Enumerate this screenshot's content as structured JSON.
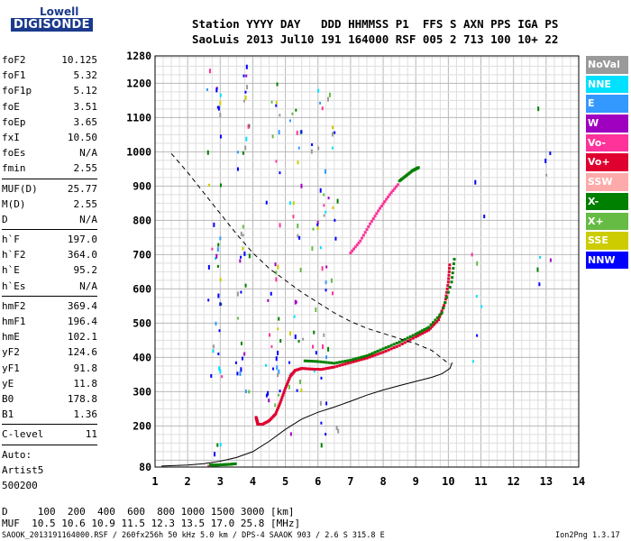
{
  "logo": {
    "line1": "Lowell",
    "line2": "DIGISONDE"
  },
  "header": {
    "row1": "Station YYYY DAY   DDD HHMMSS P1  FFS S AXN PPS IGA PS",
    "row2": "SaoLuis 2013 Jul10 191 164000 RSF 005 2 713 100 10+ 22"
  },
  "parameters": [
    [
      {
        "name": "foF2",
        "value": "10.125"
      },
      {
        "name": "foF1",
        "value": "5.32"
      },
      {
        "name": "foF1p",
        "value": "5.12"
      },
      {
        "name": "foE",
        "value": "3.51"
      },
      {
        "name": "foEp",
        "value": "3.65"
      },
      {
        "name": "fxI",
        "value": "10.50"
      },
      {
        "name": "foEs",
        "value": "N/A"
      },
      {
        "name": "fmin",
        "value": "2.55"
      }
    ],
    [
      {
        "name": "MUF(D)",
        "value": "25.77"
      },
      {
        "name": "M(D)",
        "value": "2.55"
      },
      {
        "name": "D",
        "value": "N/A"
      }
    ],
    [
      {
        "name": "h`F",
        "value": "197.0"
      },
      {
        "name": "h`F2",
        "value": "364.0"
      },
      {
        "name": "h`E",
        "value": "95.2"
      },
      {
        "name": "h`Es",
        "value": "N/A"
      }
    ],
    [
      {
        "name": "hmF2",
        "value": "369.4"
      },
      {
        "name": "hmF1",
        "value": "196.4"
      },
      {
        "name": "hmE",
        "value": "102.1"
      },
      {
        "name": "yF2",
        "value": "124.6"
      },
      {
        "name": "yF1",
        "value": "91.8"
      },
      {
        "name": "yE",
        "value": "11.8"
      },
      {
        "name": "B0",
        "value": "178.8"
      },
      {
        "name": "B1",
        "value": "1.36"
      }
    ],
    [
      {
        "name": "C-level",
        "value": "11"
      }
    ],
    [
      {
        "name": "Auto:",
        "value": ""
      },
      {
        "name": "Artist5",
        "value": ""
      },
      {
        "name": "500200",
        "value": ""
      }
    ]
  ],
  "legend": [
    {
      "label": "NoVal",
      "color": "#9a9a9a"
    },
    {
      "label": "NNE",
      "color": "#00e0ff"
    },
    {
      "label": "E",
      "color": "#3399ff"
    },
    {
      "label": "W",
      "color": "#a000c0"
    },
    {
      "label": "Vo-",
      "color": "#ff3399"
    },
    {
      "label": "Vo+",
      "color": "#e00030"
    },
    {
      "label": "SSW",
      "color": "#ffaaaa"
    },
    {
      "label": "X-",
      "color": "#008000"
    },
    {
      "label": "X+",
      "color": "#66bb44"
    },
    {
      "label": "SSE",
      "color": "#cccc00"
    },
    {
      "label": "NNW",
      "color": "#0000ff"
    }
  ],
  "footer": {
    "d_row": "D     100  200  400  600  800 1000 1500 3000 [km]",
    "muf_row": "MUF  10.5 10.6 10.9 11.5 12.3 13.5 17.0 25.8 [MHz]",
    "file_info": "SAOOK_2013191164000.RSF / 260fx256h 50 kHz 5.0 km / DPS-4 SAAOK 903 / 2.6 S 315.8 E",
    "version": "Ion2Png 1.3.17"
  },
  "chart_data": {
    "type": "scatter",
    "x_ticks": [
      1,
      2,
      3,
      4,
      5,
      6,
      7,
      8,
      9,
      10,
      11,
      12,
      13,
      14
    ],
    "y_ticks": [
      80,
      200,
      300,
      400,
      500,
      600,
      700,
      800,
      900,
      1000,
      1100,
      1200,
      1280
    ],
    "xlim": [
      1,
      14
    ],
    "ylim": [
      80,
      1280
    ],
    "grid": true,
    "legend_placement": "right",
    "series": [
      {
        "color": "#e00030",
        "x": [
          4.15,
          4.1,
          4.15,
          4.3,
          4.5,
          4.7,
          4.85,
          5.0,
          5.15,
          5.3,
          5.5,
          5.8,
          6.1,
          6.5,
          7.0,
          7.5,
          8.0,
          8.5,
          9.0,
          9.4,
          9.7,
          9.9,
          10.0,
          10.05
        ],
        "y": [
          210,
          225,
          205,
          205,
          215,
          235,
          270,
          310,
          345,
          362,
          368,
          366,
          365,
          372,
          385,
          398,
          415,
          435,
          460,
          480,
          510,
          560,
          620,
          680
        ]
      },
      {
        "color": "#008000",
        "x": [
          5.6,
          6.0,
          6.5,
          7.0,
          7.5,
          8.0,
          8.5,
          9.0,
          9.4,
          9.8,
          10.1,
          10.2
        ],
        "y": [
          390,
          388,
          383,
          392,
          405,
          425,
          445,
          468,
          488,
          530,
          620,
          700
        ]
      },
      {
        "color": "#008000",
        "x": [
          8.5,
          8.7,
          8.9,
          9.0,
          9.1
        ],
        "y": [
          915,
          930,
          945,
          950,
          955
        ]
      },
      {
        "color": "#ff3399",
        "x": [
          7.0,
          7.3,
          7.6,
          7.9,
          8.2,
          8.5
        ],
        "y": [
          705,
          740,
          790,
          835,
          875,
          910
        ]
      },
      {
        "color": "#008000",
        "x": [
          2.7,
          2.9,
          3.1,
          3.3,
          3.5
        ],
        "y": [
          86,
          86,
          87,
          88,
          90
        ]
      }
    ],
    "profile_curve": {
      "x": [
        1.2,
        2.0,
        2.5,
        3.0,
        3.5,
        4.0,
        4.5,
        5.0,
        5.5,
        6.0,
        6.5,
        7.0,
        7.5,
        8.0,
        8.5,
        9.0,
        9.5,
        9.8,
        10.05,
        10.12
      ],
      "y": [
        83,
        86,
        90,
        97,
        108,
        125,
        155,
        190,
        220,
        240,
        255,
        272,
        290,
        305,
        318,
        330,
        342,
        352,
        368,
        385
      ]
    },
    "virtual_height_curve": {
      "x": [
        1.5,
        2.0,
        2.5,
        3.0,
        3.5,
        4.0,
        4.5,
        5.0,
        5.5,
        6.0,
        6.5,
        7.0,
        7.5,
        8.0,
        8.5,
        9.0,
        9.5,
        9.9,
        10.05
      ],
      "y": [
        995,
        940,
        880,
        820,
        760,
        705,
        660,
        625,
        590,
        560,
        530,
        505,
        485,
        470,
        455,
        440,
        420,
        390,
        380
      ]
    }
  }
}
